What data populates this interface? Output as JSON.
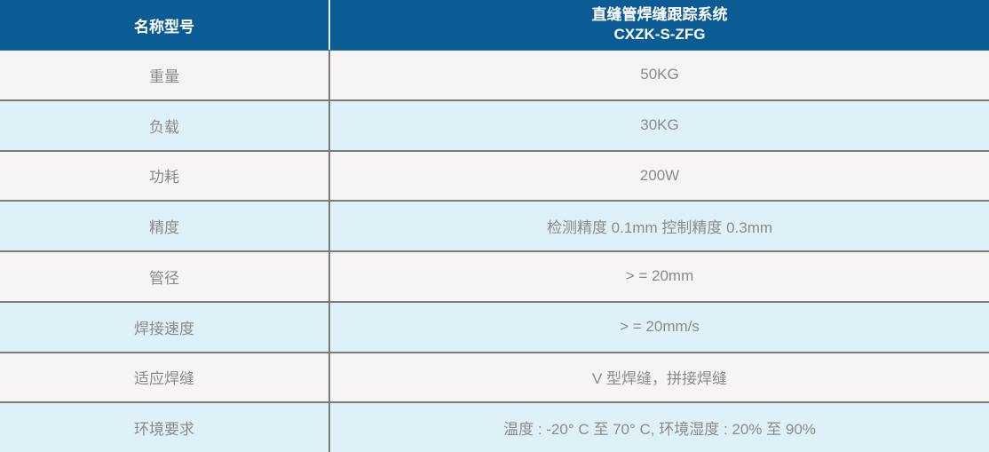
{
  "table": {
    "header": {
      "label": "名称型号",
      "product_name": "直缝管焊缝跟踪系统",
      "product_model": "CXZK-S-ZFG"
    },
    "rows": [
      {
        "label": "重量",
        "value": "50KG"
      },
      {
        "label": "负载",
        "value": "30KG"
      },
      {
        "label": "功耗",
        "value": "200W"
      },
      {
        "label": "精度",
        "value": "检测精度 0.1mm 控制精度 0.3mm"
      },
      {
        "label": "管径",
        "value": "> = 20mm"
      },
      {
        "label": "焊接速度",
        "value": "> = 20mm/s"
      },
      {
        "label": "适应焊缝",
        "value": "V 型焊缝，拼接焊缝"
      },
      {
        "label": "环境要求",
        "value": "温度 : -20° C 至 70° C, 环境湿度 : 20% 至 90%"
      }
    ],
    "colors": {
      "header_background": "#0b5b94",
      "header_text": "#ffffff",
      "row_light_background": "#f6f5f4",
      "row_blue_background": "#def1f9",
      "border": "#7a7a7a",
      "body_text": "#8a8a8a"
    }
  }
}
